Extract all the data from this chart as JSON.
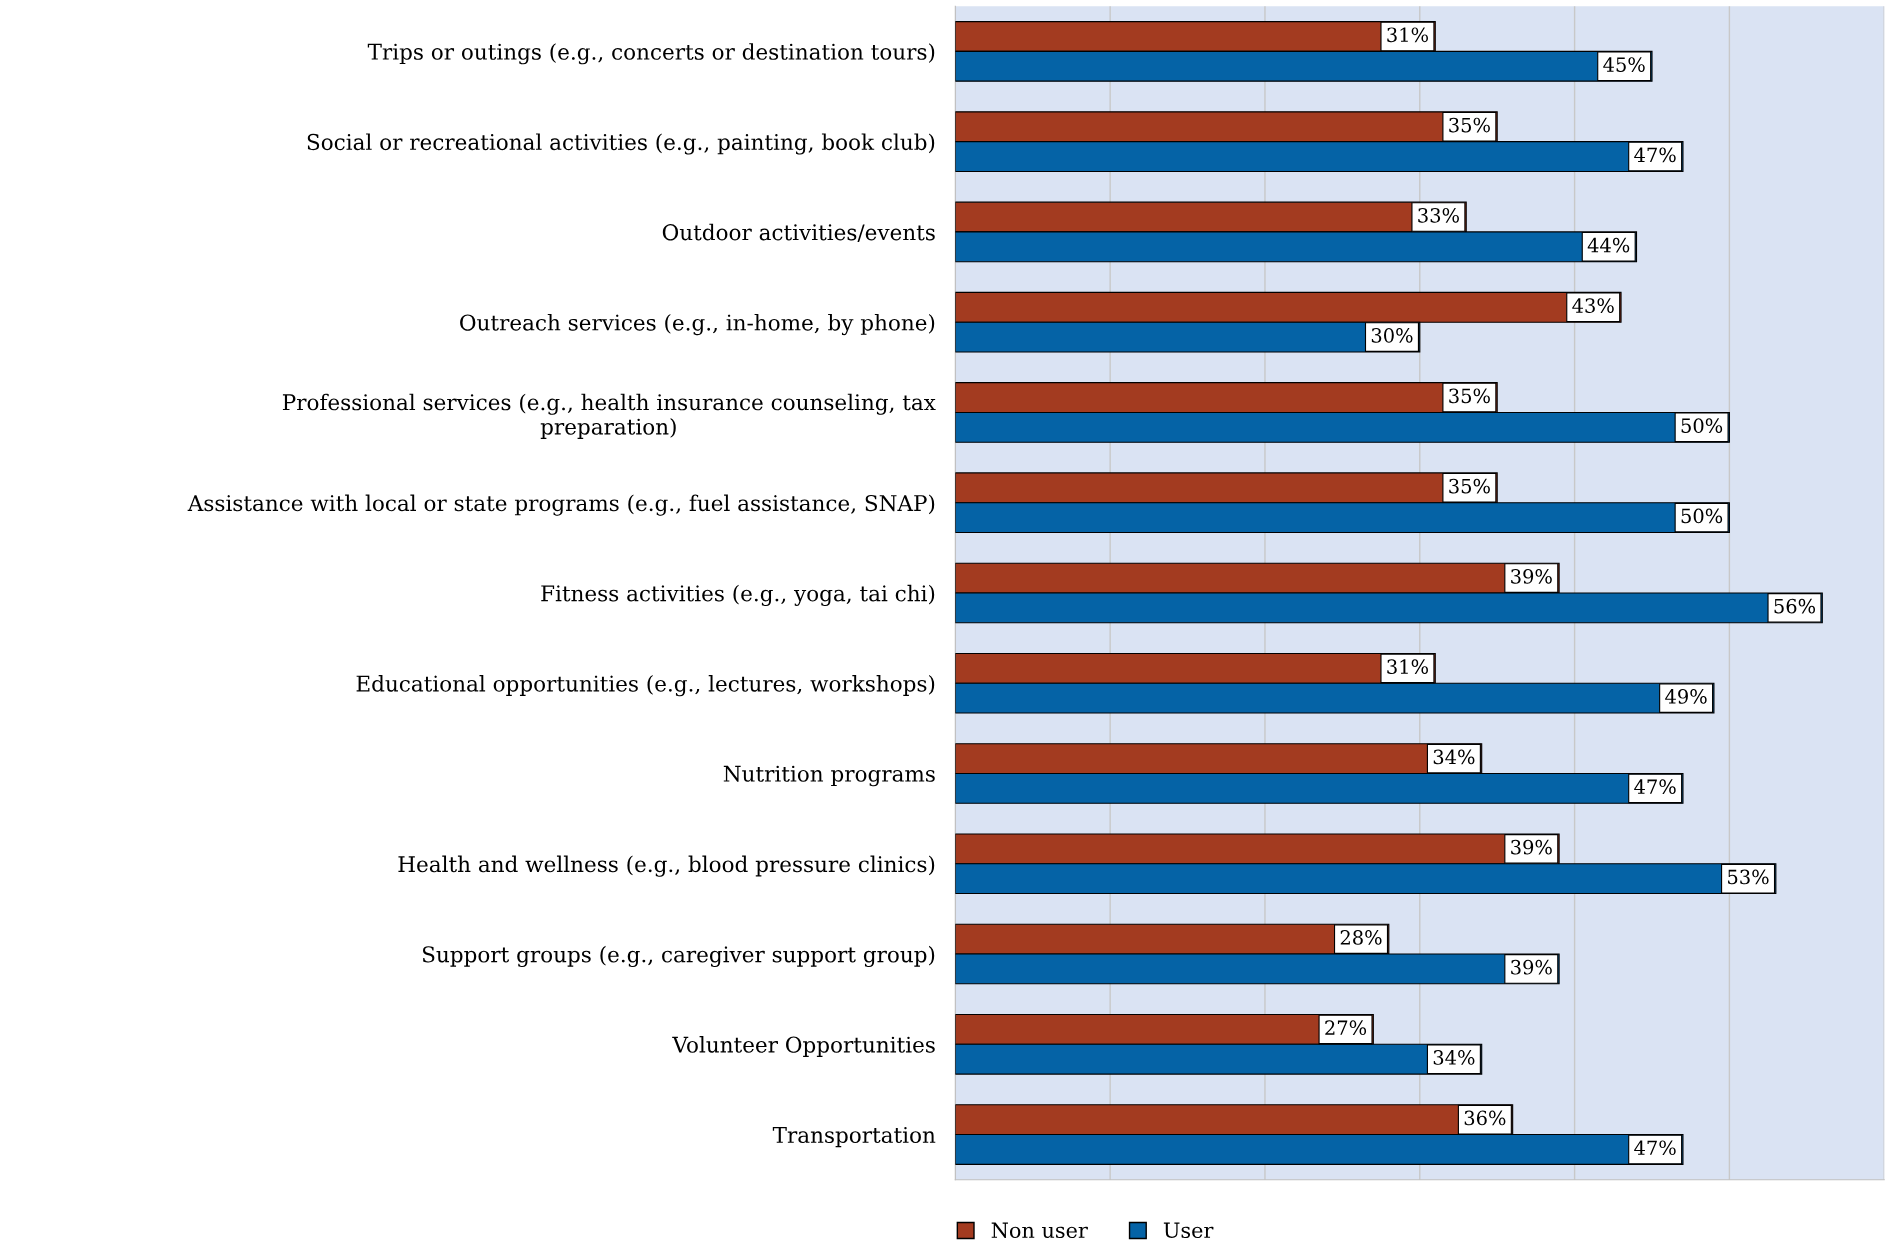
{
  "chart_data": {
    "type": "bar",
    "orientation": "horizontal",
    "categories": [
      "Trips or outings (e.g., concerts or destination tours)",
      "Social or recreational activities (e.g., painting, book club)",
      "Outdoor activities/events",
      "Outreach services (e.g., in-home, by phone)",
      "Professional services (e.g., health insurance counseling, tax\npreparation)",
      "Assistance with local or state programs (e.g., fuel assistance, SNAP)",
      "Fitness activities (e.g., yoga, tai chi)",
      "Educational opportunities (e.g., lectures, workshops)",
      "Nutrition programs",
      "Health and wellness (e.g., blood pressure clinics)",
      "Support groups (e.g., caregiver support group)",
      "Volunteer Opportunities",
      "Transportation"
    ],
    "series": [
      {
        "name": "Non user",
        "color": "#a33b20",
        "values": [
          31,
          35,
          33,
          43,
          35,
          35,
          39,
          31,
          34,
          39,
          28,
          27,
          36
        ],
        "value_labels": [
          "31%",
          "35%",
          "33%",
          "43%",
          "35%",
          "35%",
          "39%",
          "31%",
          "34%",
          "39%",
          "28%",
          "27%",
          "36%"
        ]
      },
      {
        "name": "User",
        "color": "#0563a6",
        "values": [
          45,
          47,
          44,
          30,
          50,
          50,
          56,
          49,
          47,
          53,
          39,
          34,
          47
        ],
        "value_labels": [
          "45%",
          "47%",
          "44%",
          "30%",
          "50%",
          "50%",
          "56%",
          "49%",
          "47%",
          "53%",
          "39%",
          "34%",
          "47%"
        ]
      }
    ],
    "xlim": [
      0,
      60
    ],
    "xticks": [
      {
        "value": 0,
        "label": null
      },
      {
        "value": 10,
        "label": null
      },
      {
        "value": 20,
        "label": null
      },
      {
        "value": 30,
        "label": null
      },
      {
        "value": 40,
        "label": null
      },
      {
        "value": 50,
        "label": null
      },
      {
        "value": 60,
        "label": null
      }
    ],
    "grid": "x",
    "legend": "bottom",
    "tick_labels": "y"
  }
}
